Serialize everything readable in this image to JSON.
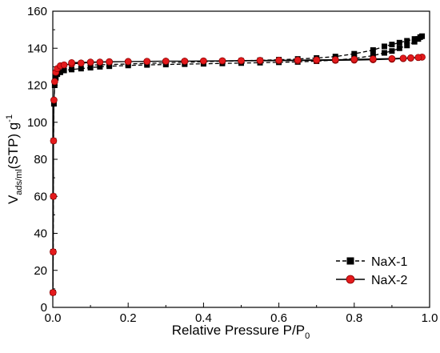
{
  "chart_data": {
    "type": "line",
    "title": "",
    "xlabel": {
      "main": "Relative Pressure P/P",
      "sub": "0"
    },
    "ylabel": {
      "main": "V",
      "sub": "ads/ml",
      "mid": "(STP) g",
      "sup": "-1"
    },
    "xlim": [
      0.0,
      1.0
    ],
    "ylim": [
      0,
      160
    ],
    "xticks": [
      0.0,
      0.2,
      0.4,
      0.6,
      0.8,
      1.0
    ],
    "xtick_labels": [
      "0.0",
      "0.2",
      "0.4",
      "0.6",
      "0.8",
      "1.0"
    ],
    "yticks": [
      0,
      20,
      40,
      60,
      80,
      100,
      120,
      140,
      160
    ],
    "ytick_labels": [
      "0",
      "20",
      "40",
      "60",
      "80",
      "100",
      "120",
      "140",
      "160"
    ],
    "grid": false,
    "legend_position": "bottom-right",
    "series": [
      {
        "name": "NaX-1",
        "color": "#000000",
        "marker": "square",
        "x": [
          0.0005,
          0.001,
          0.0015,
          0.002,
          0.003,
          0.005,
          0.008,
          0.012,
          0.02,
          0.03,
          0.05,
          0.075,
          0.1,
          0.125,
          0.15,
          0.2,
          0.25,
          0.3,
          0.35,
          0.4,
          0.45,
          0.5,
          0.55,
          0.6,
          0.65,
          0.7,
          0.75,
          0.8,
          0.85,
          0.88,
          0.9,
          0.92,
          0.94,
          0.96,
          0.97,
          0.98,
          0.975,
          0.96,
          0.94,
          0.92,
          0.9,
          0.88,
          0.85,
          0.8,
          0.75,
          0.7,
          0.65,
          0.6,
          0.55,
          0.5,
          0.45,
          0.4,
          0.35,
          0.3,
          0.25,
          0.2,
          0.15,
          0.1
        ],
        "y": [
          8,
          30,
          60,
          90,
          110,
          120,
          124,
          126,
          127,
          128,
          128.5,
          129,
          129.5,
          130,
          130.3,
          130.7,
          131,
          131.2,
          131.4,
          131.6,
          131.8,
          132,
          132.2,
          132.4,
          132.6,
          133,
          133.6,
          134.5,
          136,
          137.5,
          138.5,
          140,
          141.5,
          143.5,
          145,
          146.5,
          146,
          145,
          144,
          143,
          142,
          141,
          139,
          137,
          135.5,
          134.7,
          134.2,
          133.8,
          133.5,
          133.2,
          133,
          132.7,
          132.4,
          132.1,
          131.8,
          131.5,
          131.2,
          130.9
        ]
      },
      {
        "name": "NaX-2",
        "color": "#e41a1c",
        "marker": "circle",
        "x": [
          0.0005,
          0.001,
          0.0015,
          0.002,
          0.003,
          0.005,
          0.008,
          0.012,
          0.02,
          0.03,
          0.05,
          0.075,
          0.1,
          0.125,
          0.15,
          0.2,
          0.25,
          0.3,
          0.35,
          0.4,
          0.45,
          0.5,
          0.55,
          0.6,
          0.65,
          0.7,
          0.75,
          0.8,
          0.85,
          0.9,
          0.93,
          0.95,
          0.97,
          0.98,
          0.97,
          0.95,
          0.93,
          0.9,
          0.85,
          0.8,
          0.75,
          0.7,
          0.65,
          0.6,
          0.55,
          0.5,
          0.45,
          0.4,
          0.35,
          0.3,
          0.25,
          0.2,
          0.15,
          0.1,
          0.05
        ],
        "y": [
          8,
          30,
          60,
          90,
          112,
          122,
          127,
          129,
          130.5,
          131,
          131.5,
          132,
          132.3,
          132.5,
          132.6,
          132.8,
          132.9,
          133,
          133,
          133.1,
          133.1,
          133.2,
          133.2,
          133.3,
          133.3,
          133.4,
          133.5,
          133.6,
          133.8,
          134.1,
          134.4,
          134.7,
          135,
          135.2,
          135,
          134.8,
          134.6,
          134.4,
          134.2,
          134,
          133.8,
          133.7,
          133.6,
          133.5,
          133.4,
          133.3,
          133.2,
          133.1,
          133,
          133,
          132.9,
          132.8,
          132.7,
          132.5,
          132.2
        ]
      }
    ]
  }
}
